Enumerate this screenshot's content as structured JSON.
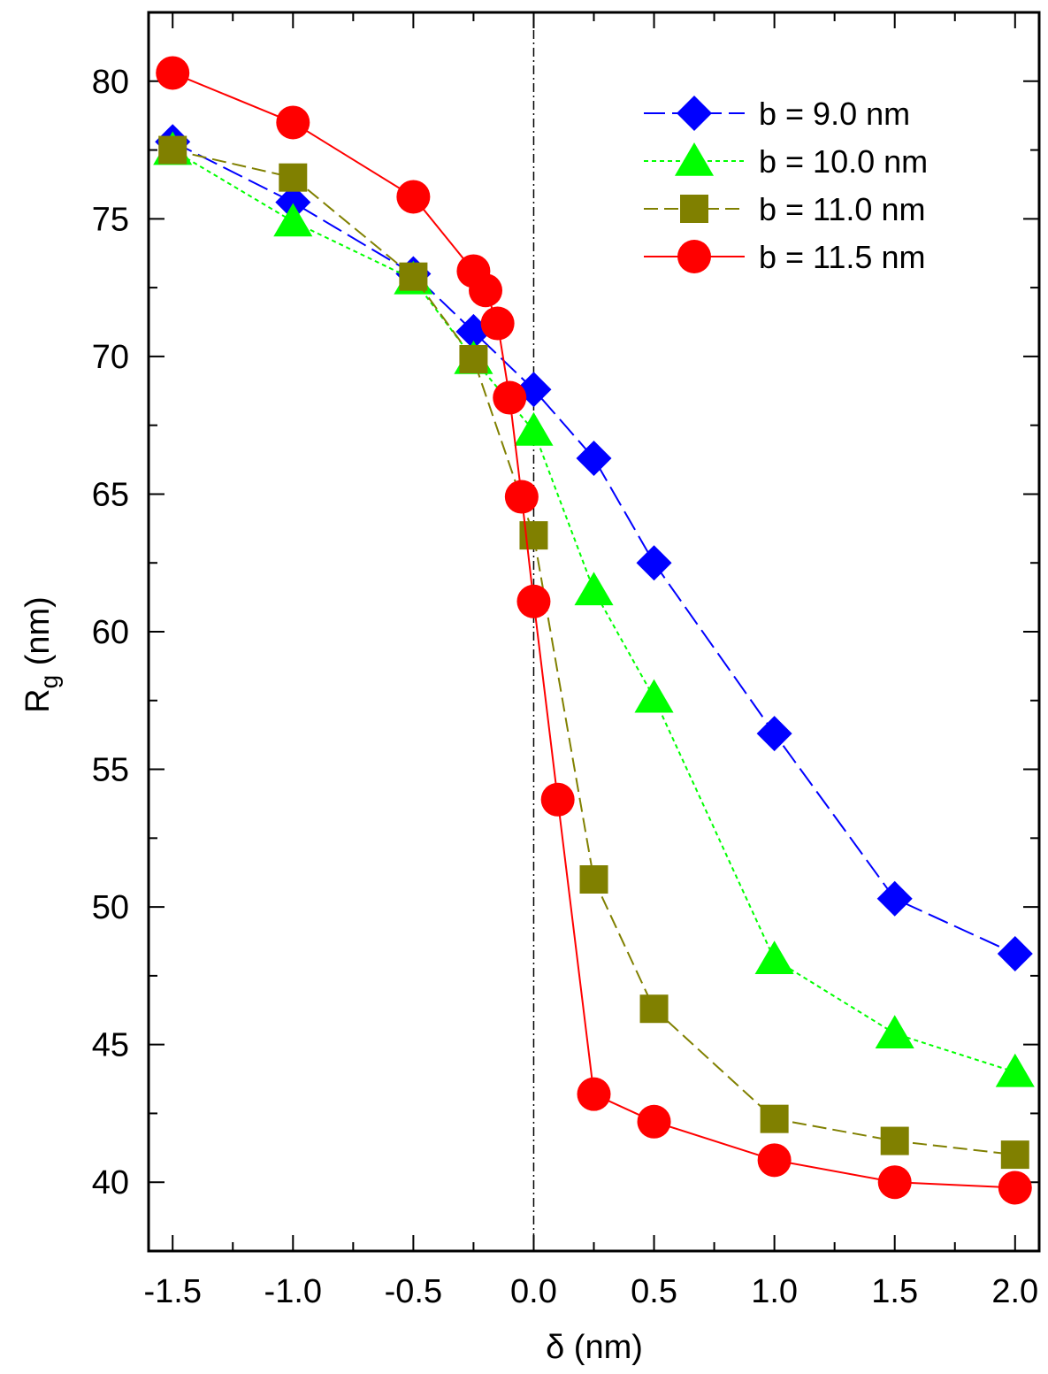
{
  "chart_data": {
    "type": "line",
    "xlabel": "δ (nm)",
    "ylabel_main": "R",
    "ylabel_sub": "g",
    "ylabel_unit": " (nm)",
    "xlim": [
      -1.6,
      2.1
    ],
    "ylim": [
      37.5,
      82.5
    ],
    "xticks": [
      -1.5,
      -1.0,
      -0.5,
      0.0,
      0.5,
      1.0,
      1.5,
      2.0
    ],
    "xtick_labels": [
      "-1.5",
      "-1.0",
      "-0.5",
      "0.0",
      "0.5",
      "1.0",
      "1.5",
      "2.0"
    ],
    "yticks": [
      40,
      45,
      50,
      55,
      60,
      65,
      70,
      75,
      80
    ],
    "ytick_labels": [
      "40",
      "45",
      "50",
      "55",
      "60",
      "65",
      "70",
      "75",
      "80"
    ],
    "reference_line_x": 0.0,
    "legend_position": "top-right",
    "series": [
      {
        "name": "b = 9.0 nm",
        "color": "#0000ff",
        "marker": "diamond",
        "dash": "long-dash",
        "x": [
          -1.5,
          -1.0,
          -0.5,
          -0.25,
          0.0,
          0.25,
          0.5,
          1.0,
          1.5,
          2.0
        ],
        "y": [
          77.8,
          75.6,
          73.0,
          70.9,
          68.8,
          66.3,
          62.5,
          56.3,
          50.3,
          48.3
        ]
      },
      {
        "name": "b = 10.0 nm",
        "color": "#00ff00",
        "marker": "triangle",
        "dash": "dotted",
        "x": [
          -1.5,
          -1.0,
          -0.5,
          -0.25,
          0.0,
          0.25,
          0.5,
          1.0,
          1.5,
          2.0
        ],
        "y": [
          77.5,
          74.9,
          72.8,
          69.9,
          67.3,
          61.5,
          57.6,
          48.1,
          45.4,
          44.0
        ]
      },
      {
        "name": "b = 11.0 nm",
        "color": "#808000",
        "marker": "square",
        "dash": "dashed",
        "x": [
          -1.5,
          -1.0,
          -0.5,
          -0.25,
          0.0,
          0.25,
          0.5,
          1.0,
          1.5,
          2.0
        ],
        "y": [
          77.5,
          76.5,
          72.9,
          69.9,
          63.5,
          51.0,
          46.3,
          42.3,
          41.5,
          41.0
        ]
      },
      {
        "name": "b = 11.5 nm",
        "color": "#ff0000",
        "marker": "circle",
        "dash": "solid",
        "x": [
          -1.5,
          -1.0,
          -0.5,
          -0.25,
          -0.2,
          -0.15,
          -0.1,
          -0.05,
          0.0,
          0.1,
          0.25,
          0.5,
          1.0,
          1.5,
          2.0
        ],
        "y": [
          80.3,
          78.5,
          75.8,
          73.1,
          72.4,
          71.2,
          68.5,
          64.9,
          61.1,
          53.9,
          43.2,
          42.2,
          40.8,
          40.0,
          39.8
        ]
      }
    ]
  }
}
